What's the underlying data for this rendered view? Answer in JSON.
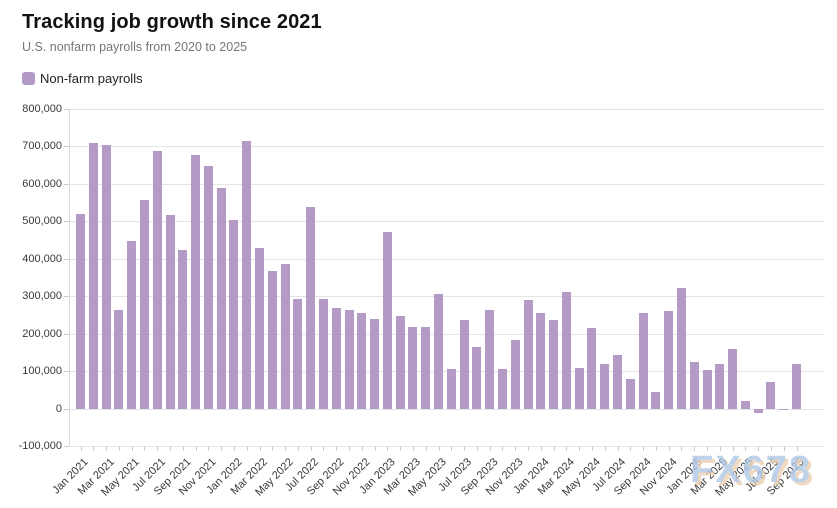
{
  "header": {
    "title": "Tracking job growth since 2021",
    "subtitle": "U.S. nonfarm payrolls from 2020 to 2025"
  },
  "legend": {
    "label": "Non-farm payrolls"
  },
  "watermark": {
    "text": "FX678"
  },
  "colors": {
    "bar": "#b39bc6",
    "grid": "#e4e4e4",
    "axis": "#d9d9d9",
    "tick": "#c9c9c9",
    "title": "#111111",
    "subtitle": "#767676",
    "tick_label": "#3a3a3a",
    "watermark_blue": "#aec9e6",
    "watermark_peach": "#ecd0b2"
  },
  "chart_data": {
    "type": "bar",
    "title": "Tracking job growth since 2021",
    "subtitle": "U.S. nonfarm payrolls from 2020 to 2025",
    "series_name": "Non-farm payrolls",
    "xlabel": "",
    "ylabel": "",
    "ylim": [
      -100000,
      800000
    ],
    "ytick_interval": 100000,
    "xtick_label_every": 2,
    "grid": "horizontal",
    "legend_position": "top-left",
    "categories": [
      "Jan 2021",
      "Feb 2021",
      "Mar 2021",
      "Apr 2021",
      "May 2021",
      "Jun 2021",
      "Jul 2021",
      "Aug 2021",
      "Sep 2021",
      "Oct 2021",
      "Nov 2021",
      "Dec 2021",
      "Jan 2022",
      "Feb 2022",
      "Mar 2022",
      "Apr 2022",
      "May 2022",
      "Jun 2022",
      "Jul 2022",
      "Aug 2022",
      "Sep 2022",
      "Oct 2022",
      "Nov 2022",
      "Dec 2022",
      "Jan 2023",
      "Feb 2023",
      "Mar 2023",
      "Apr 2023",
      "May 2023",
      "Jun 2023",
      "Jul 2023",
      "Aug 2023",
      "Sep 2023",
      "Oct 2023",
      "Nov 2023",
      "Dec 2023",
      "Jan 2024",
      "Feb 2024",
      "Mar 2024",
      "Apr 2024",
      "May 2024",
      "Jun 2024",
      "Jul 2024",
      "Aug 2024",
      "Sep 2024",
      "Oct 2024",
      "Nov 2024",
      "Dec 2024",
      "Jan 2025",
      "Feb 2025",
      "Mar 2025",
      "Apr 2025",
      "May 2025",
      "Jun 2025",
      "Jul 2025",
      "Aug 2025",
      "Sep 2025"
    ],
    "values": [
      520000,
      710000,
      704000,
      263000,
      447000,
      557000,
      689000,
      517000,
      424000,
      677000,
      647000,
      588000,
      504000,
      714000,
      428000,
      368000,
      386000,
      293000,
      537000,
      292000,
      269000,
      263000,
      256000,
      239000,
      472000,
      248000,
      217000,
      217000,
      306000,
      105000,
      236000,
      165000,
      262000,
      105000,
      182000,
      290000,
      256000,
      236000,
      310000,
      108000,
      216000,
      118000,
      144000,
      78000,
      255000,
      44000,
      261000,
      323000,
      125000,
      102000,
      120000,
      158000,
      19000,
      -13000,
      72000,
      -4000,
      119000
    ]
  }
}
